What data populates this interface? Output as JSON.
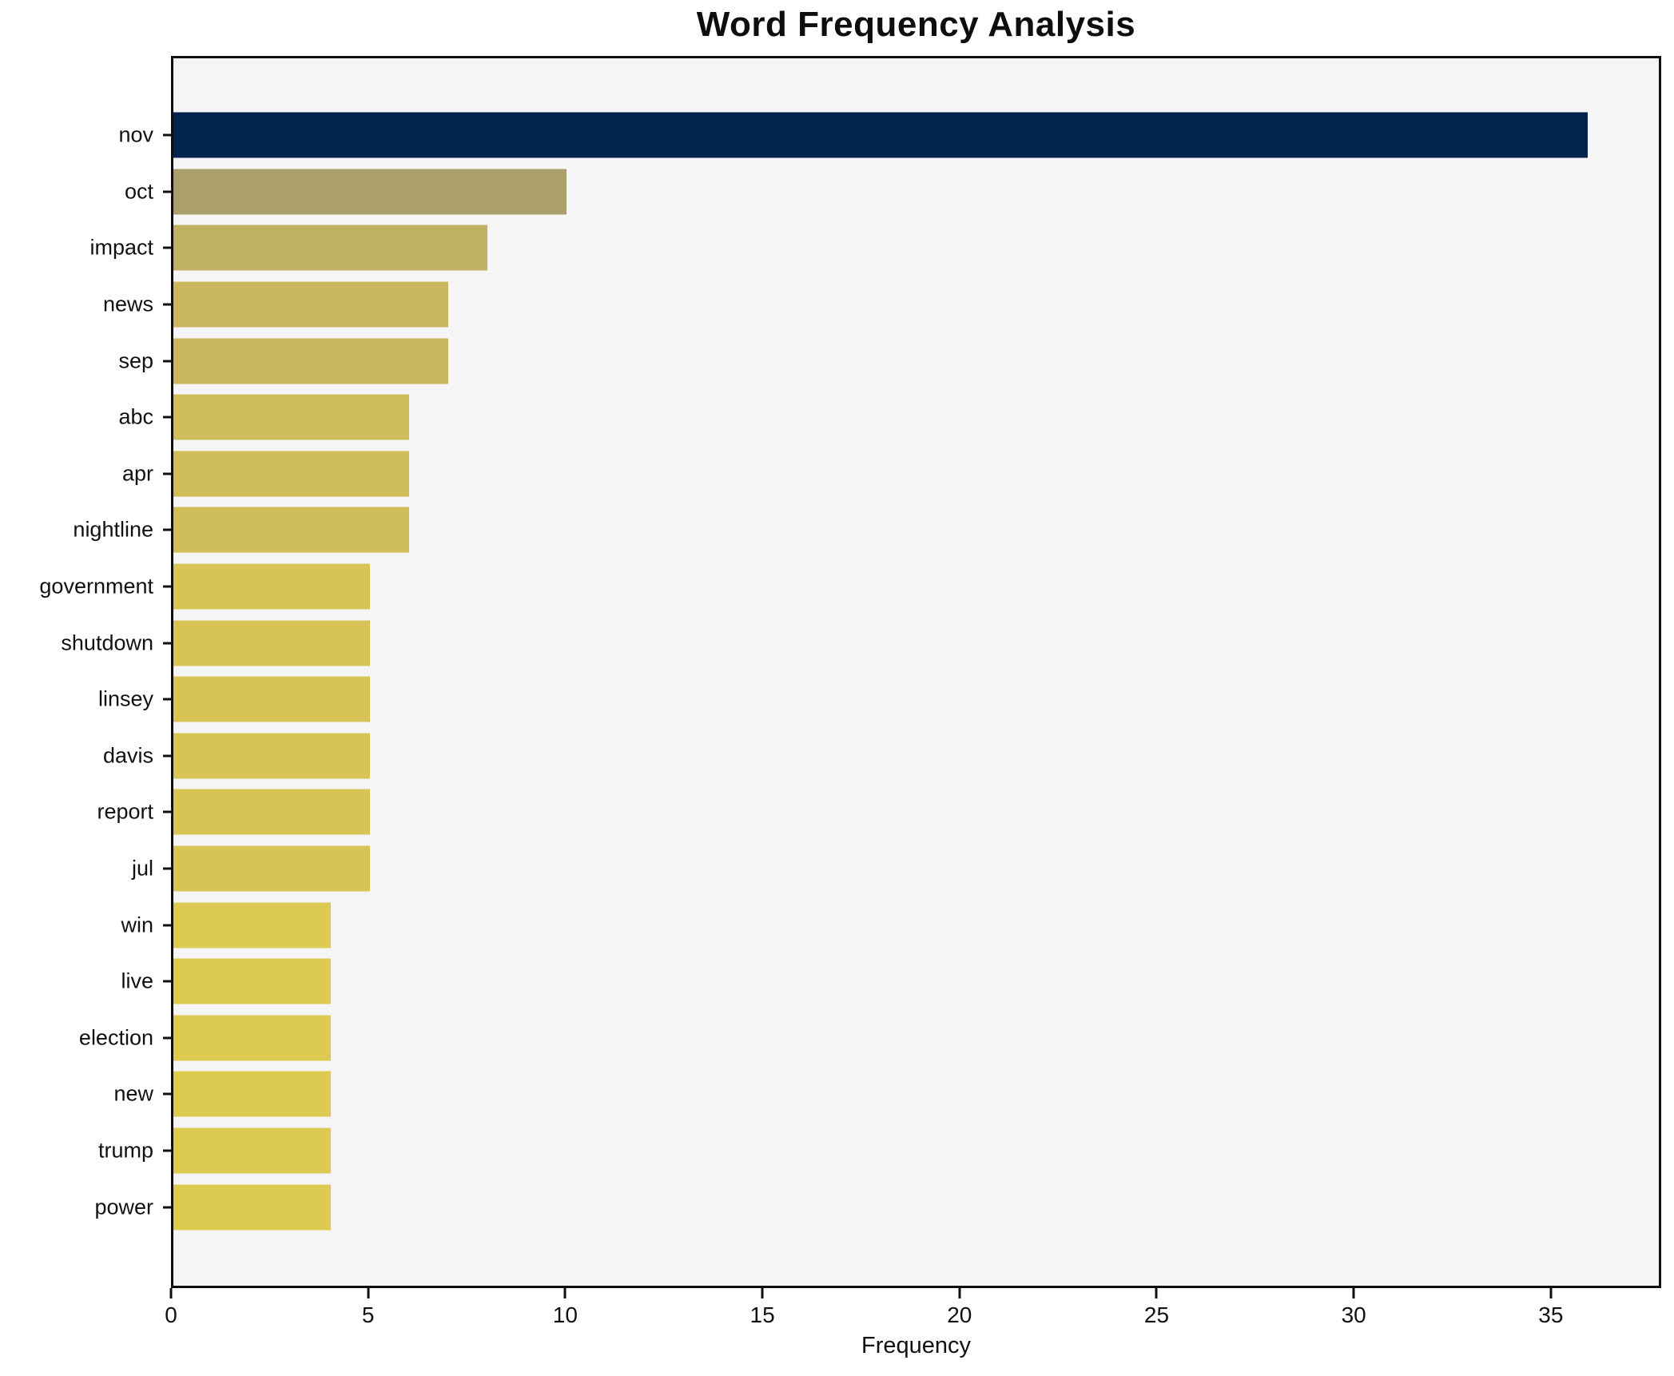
{
  "title": "Word Frequency Analysis",
  "chart_data": {
    "type": "bar",
    "orientation": "horizontal",
    "title": "Word Frequency Analysis",
    "xlabel": "Frequency",
    "ylabel": "",
    "categories": [
      "nov",
      "oct",
      "impact",
      "news",
      "sep",
      "abc",
      "apr",
      "nightline",
      "government",
      "shutdown",
      "linsey",
      "davis",
      "report",
      "jul",
      "win",
      "live",
      "election",
      "new",
      "trump",
      "power"
    ],
    "values": [
      36,
      10,
      8,
      7,
      7,
      6,
      6,
      6,
      5,
      5,
      5,
      5,
      5,
      5,
      4,
      4,
      4,
      4,
      4,
      4
    ],
    "bar_colors": [
      "#02234e",
      "#aba06c",
      "#c1b164",
      "#cab75f",
      "#cab75f",
      "#cfbc5b",
      "#cfbc5b",
      "#cfbc5b",
      "#d7c356",
      "#d7c356",
      "#d7c356",
      "#d7c356",
      "#d7c356",
      "#d7c356",
      "#ddca52",
      "#ddca52",
      "#ddca52",
      "#ddca52",
      "#ddca52",
      "#ddca52"
    ],
    "x_ticks": [
      0,
      5,
      10,
      15,
      20,
      25,
      30,
      35
    ],
    "xlim": [
      0,
      37.8
    ],
    "grid": false,
    "legend": null,
    "plot_background": "#f5f5f6",
    "figure_background": "#ffffff",
    "spine_color": "#101010"
  }
}
